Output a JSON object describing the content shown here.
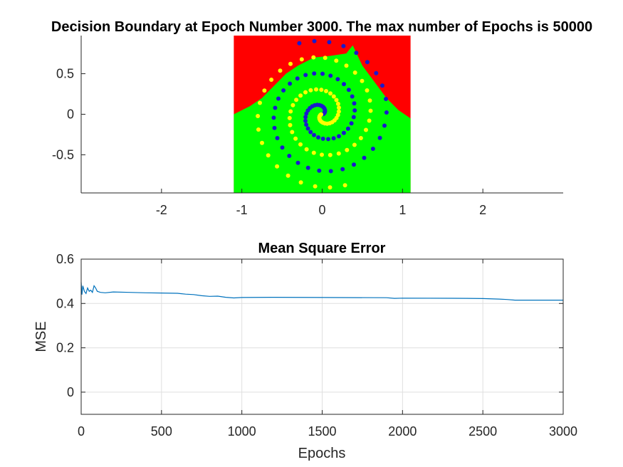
{
  "chart_data": [
    {
      "type": "scatter",
      "title": "Decision Boundary at Epoch Number 3000. The max number of Epochs is 50000",
      "xlabel": "",
      "ylabel": "",
      "xlim": [
        -3,
        3
      ],
      "ylim": [
        -0.97,
        0.97
      ],
      "xticks": [
        -2,
        -1,
        0,
        1,
        2
      ],
      "xtick_labels": [
        "-2",
        "-1",
        "0",
        "1",
        "2"
      ],
      "yticks": [
        -0.5,
        0,
        0.5
      ],
      "ytick_labels": [
        "-0.5",
        "0",
        "0.5"
      ],
      "grid": false,
      "region": {
        "x": [
          -1.1,
          1.1
        ],
        "y": [
          -0.97,
          0.97
        ]
      },
      "class_colors": {
        "upper_region": "#ff0000",
        "lower_region": "#00ff00",
        "spiral_a": "#1a1acc",
        "spiral_b": "#ffff00"
      },
      "boundary": [
        [
          -1.1,
          0.0
        ],
        [
          -0.9,
          0.1
        ],
        [
          -0.75,
          0.2
        ],
        [
          -0.6,
          0.35
        ],
        [
          -0.45,
          0.5
        ],
        [
          -0.3,
          0.6
        ],
        [
          -0.1,
          0.7
        ],
        [
          0.1,
          0.72
        ],
        [
          0.3,
          0.75
        ],
        [
          0.38,
          0.85
        ],
        [
          0.5,
          0.6
        ],
        [
          0.65,
          0.4
        ],
        [
          0.8,
          0.2
        ],
        [
          0.95,
          0.05
        ],
        [
          1.1,
          -0.05
        ]
      ],
      "series": [
        {
          "values": [],
          "spiral": {
            "turns": 2.3,
            "r_max": 0.92,
            "count": 70,
            "phase": 0
          }
        },
        {
          "values": [],
          "spiral": {
            "turns": 2.3,
            "r_max": 0.92,
            "count": 70,
            "phase": 180
          }
        }
      ]
    },
    {
      "type": "line",
      "title": "Mean Square Error",
      "xlabel": "Epochs",
      "ylabel": "MSE",
      "xlim": [
        0,
        3000
      ],
      "ylim": [
        -0.1,
        0.6
      ],
      "xticks": [
        0,
        500,
        1000,
        1500,
        2000,
        2500,
        3000
      ],
      "xtick_labels": [
        "0",
        "500",
        "1000",
        "1500",
        "2000",
        "2500",
        "3000"
      ],
      "yticks": [
        0,
        0.2,
        0.4,
        0.6
      ],
      "ytick_labels": [
        "0",
        "0.2",
        "0.4",
        "0.6"
      ],
      "grid": true,
      "line_color": "#0072bd",
      "x": [
        0,
        5,
        10,
        20,
        30,
        40,
        50,
        60,
        70,
        80,
        90,
        100,
        120,
        150,
        200,
        300,
        400,
        500,
        600,
        650,
        700,
        750,
        800,
        850,
        900,
        950,
        1000,
        1200,
        1500,
        1900,
        1950,
        2000,
        2400,
        2500,
        2600,
        2650,
        2700,
        3000
      ],
      "y": [
        0.495,
        0.44,
        0.48,
        0.455,
        0.445,
        0.47,
        0.455,
        0.46,
        0.45,
        0.48,
        0.47,
        0.455,
        0.45,
        0.448,
        0.452,
        0.45,
        0.448,
        0.447,
        0.446,
        0.442,
        0.44,
        0.435,
        0.432,
        0.433,
        0.428,
        0.425,
        0.427,
        0.428,
        0.427,
        0.426,
        0.423,
        0.424,
        0.423,
        0.422,
        0.42,
        0.418,
        0.415,
        0.415
      ]
    }
  ]
}
